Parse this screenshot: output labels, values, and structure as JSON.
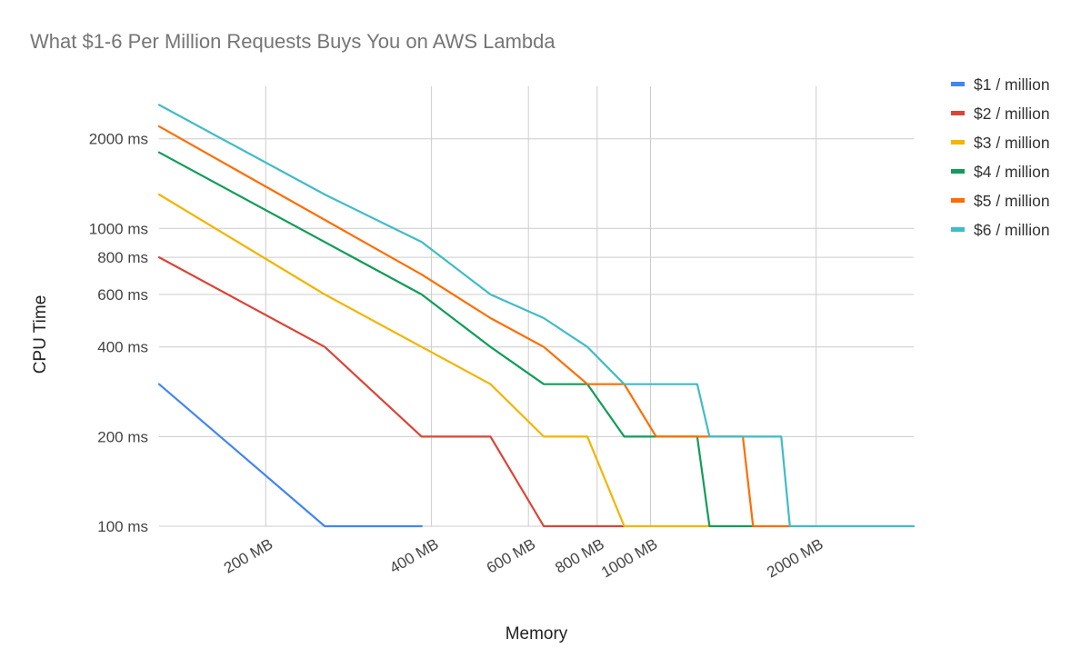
{
  "chart_data": {
    "type": "line",
    "title": "What $1-6 Per Million Requests Buys You on AWS Lambda",
    "xlabel": "Memory",
    "ylabel": "CPU Time",
    "x_scale": "log",
    "y_scale": "log",
    "xlim": [
      128,
      3008
    ],
    "ylim": [
      100,
      3000
    ],
    "grid": true,
    "legend_position": "right",
    "x_ticks": [
      {
        "value": 200,
        "label": "200 MB"
      },
      {
        "value": 400,
        "label": "400 MB"
      },
      {
        "value": 600,
        "label": "600 MB"
      },
      {
        "value": 800,
        "label": "800 MB"
      },
      {
        "value": 1000,
        "label": "1000 MB"
      },
      {
        "value": 2000,
        "label": "2000 MB"
      }
    ],
    "y_ticks": [
      {
        "value": 100,
        "label": "100 ms"
      },
      {
        "value": 200,
        "label": "200 ms"
      },
      {
        "value": 400,
        "label": "400 ms"
      },
      {
        "value": 600,
        "label": "600 ms"
      },
      {
        "value": 800,
        "label": "800 ms"
      },
      {
        "value": 1000,
        "label": "1000 ms"
      },
      {
        "value": 2000,
        "label": "2000 ms"
      }
    ],
    "series": [
      {
        "name": "$1 / million",
        "color": "#4285F4",
        "points": [
          [
            128,
            300
          ],
          [
            256,
            100
          ],
          [
            384,
            100
          ]
        ]
      },
      {
        "name": "$2 / million",
        "color": "#DB4437",
        "points": [
          [
            128,
            800
          ],
          [
            256,
            400
          ],
          [
            384,
            200
          ],
          [
            512,
            200
          ],
          [
            640,
            100
          ],
          [
            896,
            100
          ]
        ]
      },
      {
        "name": "$3 / million",
        "color": "#F4B400",
        "points": [
          [
            128,
            1300
          ],
          [
            256,
            600
          ],
          [
            384,
            400
          ],
          [
            512,
            300
          ],
          [
            640,
            200
          ],
          [
            768,
            200
          ],
          [
            896,
            100
          ],
          [
            1280,
            100
          ]
        ]
      },
      {
        "name": "$4 / million",
        "color": "#0F9D58",
        "points": [
          [
            128,
            1800
          ],
          [
            384,
            600
          ],
          [
            512,
            400
          ],
          [
            640,
            300
          ],
          [
            768,
            300
          ],
          [
            896,
            200
          ],
          [
            1216,
            200
          ],
          [
            1280,
            100
          ],
          [
            1536,
            100
          ]
        ]
      },
      {
        "name": "$5 / million",
        "color": "#FF6D00",
        "points": [
          [
            128,
            2200
          ],
          [
            384,
            700
          ],
          [
            512,
            500
          ],
          [
            640,
            400
          ],
          [
            768,
            300
          ],
          [
            896,
            300
          ],
          [
            1024,
            200
          ],
          [
            1472,
            200
          ],
          [
            1536,
            100
          ],
          [
            1792,
            100
          ]
        ]
      },
      {
        "name": "$6 / million",
        "color": "#3FBCC6",
        "points": [
          [
            128,
            2600
          ],
          [
            256,
            1300
          ],
          [
            384,
            900
          ],
          [
            512,
            600
          ],
          [
            640,
            500
          ],
          [
            768,
            400
          ],
          [
            896,
            300
          ],
          [
            1216,
            300
          ],
          [
            1280,
            200
          ],
          [
            1728,
            200
          ],
          [
            1792,
            100
          ],
          [
            3008,
            100
          ]
        ]
      }
    ]
  }
}
